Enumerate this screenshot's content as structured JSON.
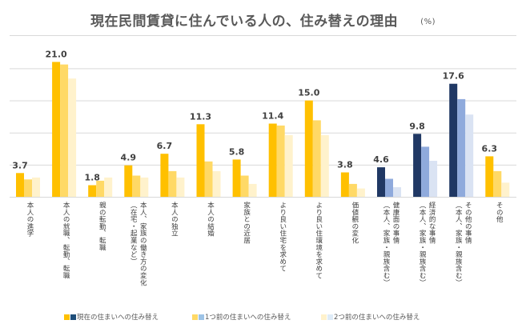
{
  "chart_data": {
    "type": "bar",
    "title": "現在民間賃貸に住んでいる人の、住み替えの理由",
    "unit": "(%)",
    "xlabel": "",
    "ylabel": "",
    "ylim": [
      0,
      25
    ],
    "yticks": [
      0,
      5,
      10,
      15,
      20
    ],
    "grid": true,
    "legend_position": "bottom",
    "categories": [
      [
        "本人の進学"
      ],
      [
        "本人の就職、転勤、転職"
      ],
      [
        "親の転勤、転職"
      ],
      [
        "本人、家族の働き方の変化",
        "（在宅・起業など）"
      ],
      [
        "本人の独立"
      ],
      [
        "本人の結婚"
      ],
      [
        "家族との近居"
      ],
      [
        "より良い住宅を求めて"
      ],
      [
        "より良い住環境を求めて"
      ],
      [
        "価値観の変化"
      ],
      [
        "健康面の事情",
        "（本人、家族・親族含む）"
      ],
      [
        "経済的な事情",
        "（本人、家族・親族含む）"
      ],
      [
        "その他の事情",
        "（本人、家族・親族含む）"
      ],
      [
        "その他"
      ]
    ],
    "category_palette": [
      "gold",
      "gold",
      "gold",
      "gold",
      "gold",
      "gold",
      "gold",
      "gold",
      "gold",
      "gold",
      "blue",
      "blue",
      "blue",
      "gold"
    ],
    "series": [
      {
        "name": "現在の住まいへの住み替え",
        "values": [
          3.7,
          21.0,
          1.8,
          4.9,
          6.7,
          11.3,
          5.8,
          11.4,
          15.0,
          3.8,
          4.6,
          9.8,
          17.6,
          6.3
        ],
        "labeled": true
      },
      {
        "name": "1つ前の住まいへの住み替え",
        "values": [
          2.7,
          20.6,
          2.5,
          3.3,
          4.0,
          5.5,
          3.3,
          11.1,
          11.9,
          2.0,
          2.8,
          7.8,
          15.2,
          4.0
        ],
        "labeled": false
      },
      {
        "name": "2つ前の住まいへの住み替え",
        "values": [
          3.0,
          18.4,
          3.0,
          3.0,
          3.0,
          4.0,
          2.0,
          9.6,
          9.6,
          1.3,
          1.5,
          5.6,
          12.8,
          2.2
        ],
        "labeled": false
      }
    ],
    "data_labels": [
      "3.7",
      "21.0",
      "1.8",
      "4.9",
      "6.7",
      "11.3",
      "5.8",
      "11.4",
      "15.0",
      "3.8",
      "4.6",
      "9.8",
      "17.6",
      "6.3"
    ],
    "colors": {
      "gold": [
        "#ffc000",
        "#ffd966",
        "#fff2cc"
      ],
      "blue": [
        "#203864",
        "#8faadc",
        "#dae3f3"
      ]
    },
    "legend": [
      {
        "label": "現在の住まいへの住み替え",
        "swatches": [
          "#ffc000",
          "#1f4e79"
        ]
      },
      {
        "label": "1つ前の住まいへの住み替え",
        "swatches": [
          "#ffd966",
          "#9dc3e6"
        ]
      },
      {
        "label": "2つ前の住まいへの住み替え",
        "swatches": [
          "#fff2cc",
          "#deebf7"
        ]
      }
    ]
  }
}
